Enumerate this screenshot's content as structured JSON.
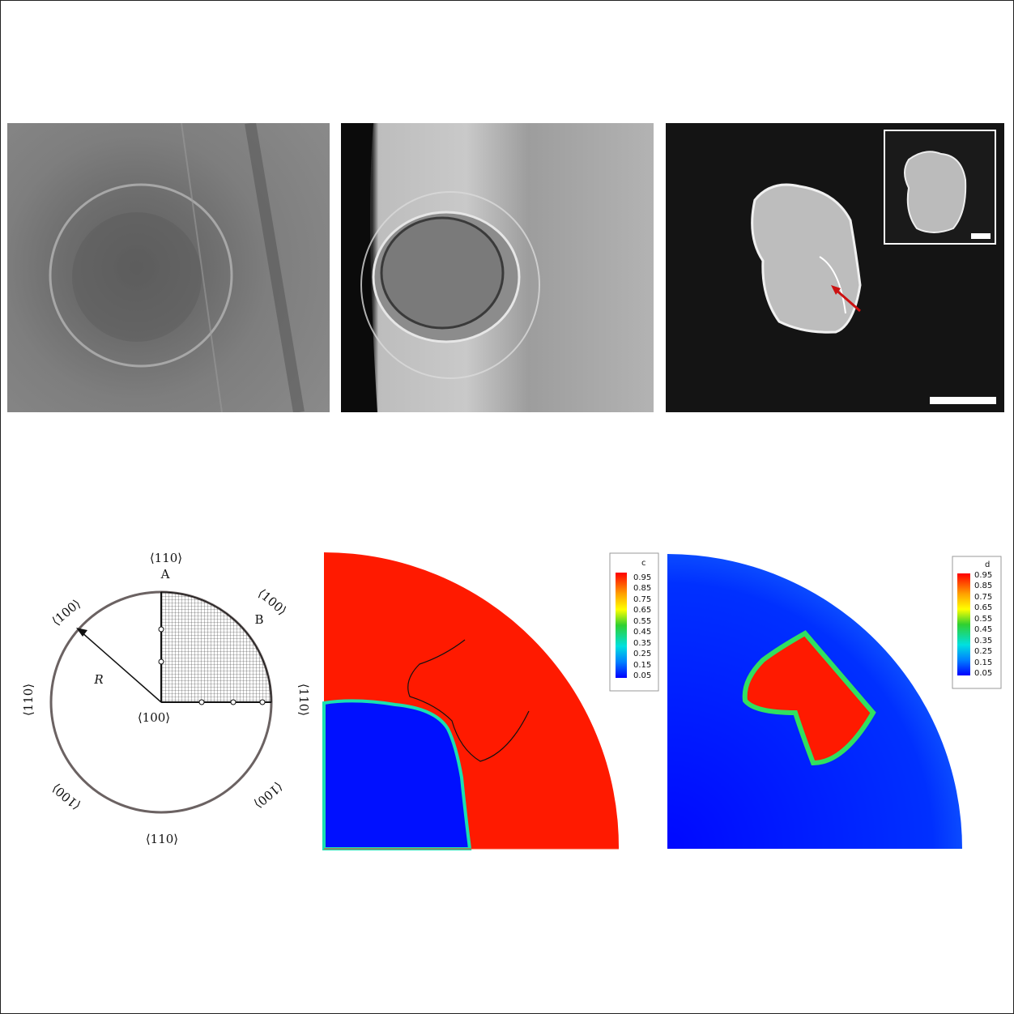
{
  "schematic": {
    "dir_top": "⟨110⟩",
    "label_a": "A",
    "label_b": "B",
    "dir_upper_left": "⟨100⟩",
    "dir_upper_right": "⟨100⟩",
    "dir_left": "⟨110⟩",
    "dir_right": "⟨110⟩",
    "dir_center": "⟨100⟩",
    "dir_lower_left": "⟨100⟩",
    "dir_lower_right": "⟨100⟩",
    "dir_bottom": "⟨110⟩",
    "radius_label": "R"
  },
  "colorbar_c": {
    "title": "c",
    "ticks": [
      "0.95",
      "0.85",
      "0.75",
      "0.65",
      "0.55",
      "0.45",
      "0.35",
      "0.25",
      "0.15",
      "0.05"
    ]
  },
  "colorbar_d": {
    "title": "d",
    "ticks": [
      "0.95",
      "0.85",
      "0.75",
      "0.65",
      "0.55",
      "0.45",
      "0.35",
      "0.25",
      "0.15",
      "0.05"
    ]
  },
  "colors": {
    "high": "#ff1a00",
    "low": "#0010ff",
    "arrow": "#cc1111"
  }
}
